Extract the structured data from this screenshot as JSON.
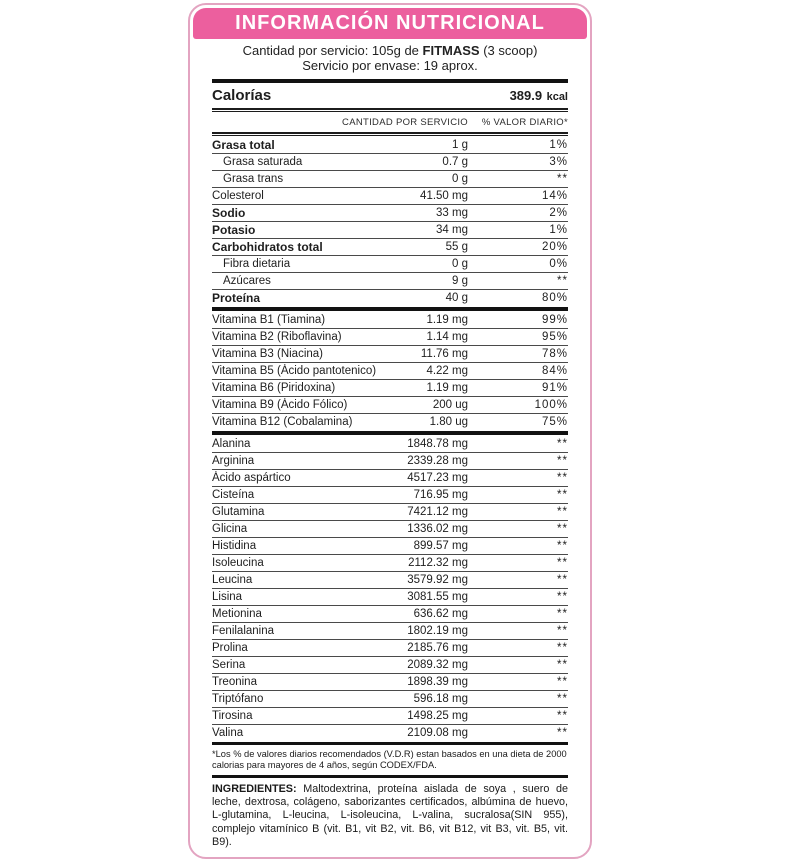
{
  "colors": {
    "banner": "#EC5F9E",
    "border": "#E3A4C1",
    "thick_rule": "#121212"
  },
  "header": {
    "title": "INFORMACIÓN NUTRICIONAL"
  },
  "serving": {
    "line1_prefix": "Cantidad por servicio: 105g de ",
    "line1_brand": "FITMASS",
    "line1_suffix": " (3 scoop)",
    "line2": "Servicio por envase: 19 aprox."
  },
  "calories": {
    "label": "Calorías",
    "value": "389.9",
    "unit": "kcal"
  },
  "columns": {
    "amount": "CANTIDAD POR SERVICIO",
    "daily": "% VALOR DIARIO*"
  },
  "nutrients": [
    {
      "label": "Grasa total",
      "amount": "1 g",
      "daily": "1%",
      "bold": true,
      "indent": false
    },
    {
      "label": "Grasa saturada",
      "amount": "0.7 g",
      "daily": "3%",
      "bold": false,
      "indent": true
    },
    {
      "label": "Grasa trans",
      "amount": "0 g",
      "daily": "**",
      "bold": false,
      "indent": true
    },
    {
      "label": "Colesterol",
      "amount": "41.50 mg",
      "daily": "14%",
      "bold": false,
      "indent": false
    },
    {
      "label": "Sodio",
      "amount": "33 mg",
      "daily": "2%",
      "bold": true,
      "indent": false
    },
    {
      "label": "Potasio",
      "amount": "34 mg",
      "daily": "1%",
      "bold": true,
      "indent": false
    },
    {
      "label": "Carbohidratos total",
      "amount": "55 g",
      "daily": "20%",
      "bold": true,
      "indent": false
    },
    {
      "label": "Fibra dietaria",
      "amount": "0 g",
      "daily": "0%",
      "bold": false,
      "indent": true
    },
    {
      "label": "Azúcares",
      "amount": "9 g",
      "daily": "**",
      "bold": false,
      "indent": true
    },
    {
      "label": "Proteína",
      "amount": "40 g",
      "daily": "80%",
      "bold": true,
      "indent": false
    }
  ],
  "vitamins": [
    {
      "label": "Vitamina B1 (Tiamina)",
      "amount": "1.19 mg",
      "daily": "99%",
      "bold": false,
      "indent": false
    },
    {
      "label": "Vitamina B2 (Riboflavina)",
      "amount": "1.14 mg",
      "daily": "95%",
      "bold": false,
      "indent": false
    },
    {
      "label": "Vitamina B3 (Niacina)",
      "amount": "11.76 mg",
      "daily": "78%",
      "bold": false,
      "indent": false
    },
    {
      "label": "Vitamina B5 (Ácido pantotenico)",
      "amount": "4.22 mg",
      "daily": "84%",
      "bold": false,
      "indent": false
    },
    {
      "label": "Vitamina B6 (Piridoxina)",
      "amount": "1.19 mg",
      "daily": "91%",
      "bold": false,
      "indent": false
    },
    {
      "label": "Vitamina B9 (Ácido Fólico)",
      "amount": "200 ug",
      "daily": "100%",
      "bold": false,
      "indent": false
    },
    {
      "label": "Vitamina B12 (Cobalamina)",
      "amount": "1.80 ug",
      "daily": "75%",
      "bold": false,
      "indent": false
    }
  ],
  "amino_acids": [
    {
      "label": "Alanina",
      "amount": "1848.78 mg",
      "daily": "**",
      "bold": false,
      "indent": false
    },
    {
      "label": "Arginina",
      "amount": "2339.28 mg",
      "daily": "**",
      "bold": false,
      "indent": false
    },
    {
      "label": "Ácido aspártico",
      "amount": "4517.23 mg",
      "daily": "**",
      "bold": false,
      "indent": false
    },
    {
      "label": "Cisteína",
      "amount": "716.95 mg",
      "daily": "**",
      "bold": false,
      "indent": false
    },
    {
      "label": "Glutamina",
      "amount": "7421.12 mg",
      "daily": "**",
      "bold": false,
      "indent": false
    },
    {
      "label": "Glicina",
      "amount": "1336.02 mg",
      "daily": "**",
      "bold": false,
      "indent": false
    },
    {
      "label": "Histidina",
      "amount": "899.57 mg",
      "daily": "**",
      "bold": false,
      "indent": false
    },
    {
      "label": "Isoleucina",
      "amount": "2112.32 mg",
      "daily": "**",
      "bold": false,
      "indent": false
    },
    {
      "label": "Leucina",
      "amount": "3579.92 mg",
      "daily": "**",
      "bold": false,
      "indent": false
    },
    {
      "label": "Lisina",
      "amount": "3081.55 mg",
      "daily": "**",
      "bold": false,
      "indent": false
    },
    {
      "label": "Metionina",
      "amount": "636.62 mg",
      "daily": "**",
      "bold": false,
      "indent": false
    },
    {
      "label": "Fenilalanina",
      "amount": "1802.19 mg",
      "daily": "**",
      "bold": false,
      "indent": false
    },
    {
      "label": "Prolina",
      "amount": "2185.76 mg",
      "daily": "**",
      "bold": false,
      "indent": false
    },
    {
      "label": "Serina",
      "amount": "2089.32 mg",
      "daily": "**",
      "bold": false,
      "indent": false
    },
    {
      "label": "Treonina",
      "amount": "1898.39 mg",
      "daily": "**",
      "bold": false,
      "indent": false
    },
    {
      "label": "Triptófano",
      "amount": "596.18 mg",
      "daily": "**",
      "bold": false,
      "indent": false
    },
    {
      "label": "Tirosina",
      "amount": "1498.25 mg",
      "daily": "**",
      "bold": false,
      "indent": false
    },
    {
      "label": "Valina",
      "amount": "2109.08 mg",
      "daily": "**",
      "bold": false,
      "indent": false
    }
  ],
  "footnote": "*Los % de valores diarios recomendados (V.D.R) estan basados en una dieta de 2000 calorias para mayores de 4 años, según CODEX/FDA.",
  "ingredients": {
    "label": "INGREDIENTES:",
    "text": " Maltodextrina, proteína aislada de soya , suero de leche, dextrosa, colágeno, saborizantes certificados, albúmina de huevo, L-glutamina, L-leucina, L-isoleucina, L-valina, sucralosa(SIN 955), complejo vitamínico B (vit. B1, vit B2, vit. B6, vit B12, vit B3, vit. B5, vit. B9)."
  }
}
